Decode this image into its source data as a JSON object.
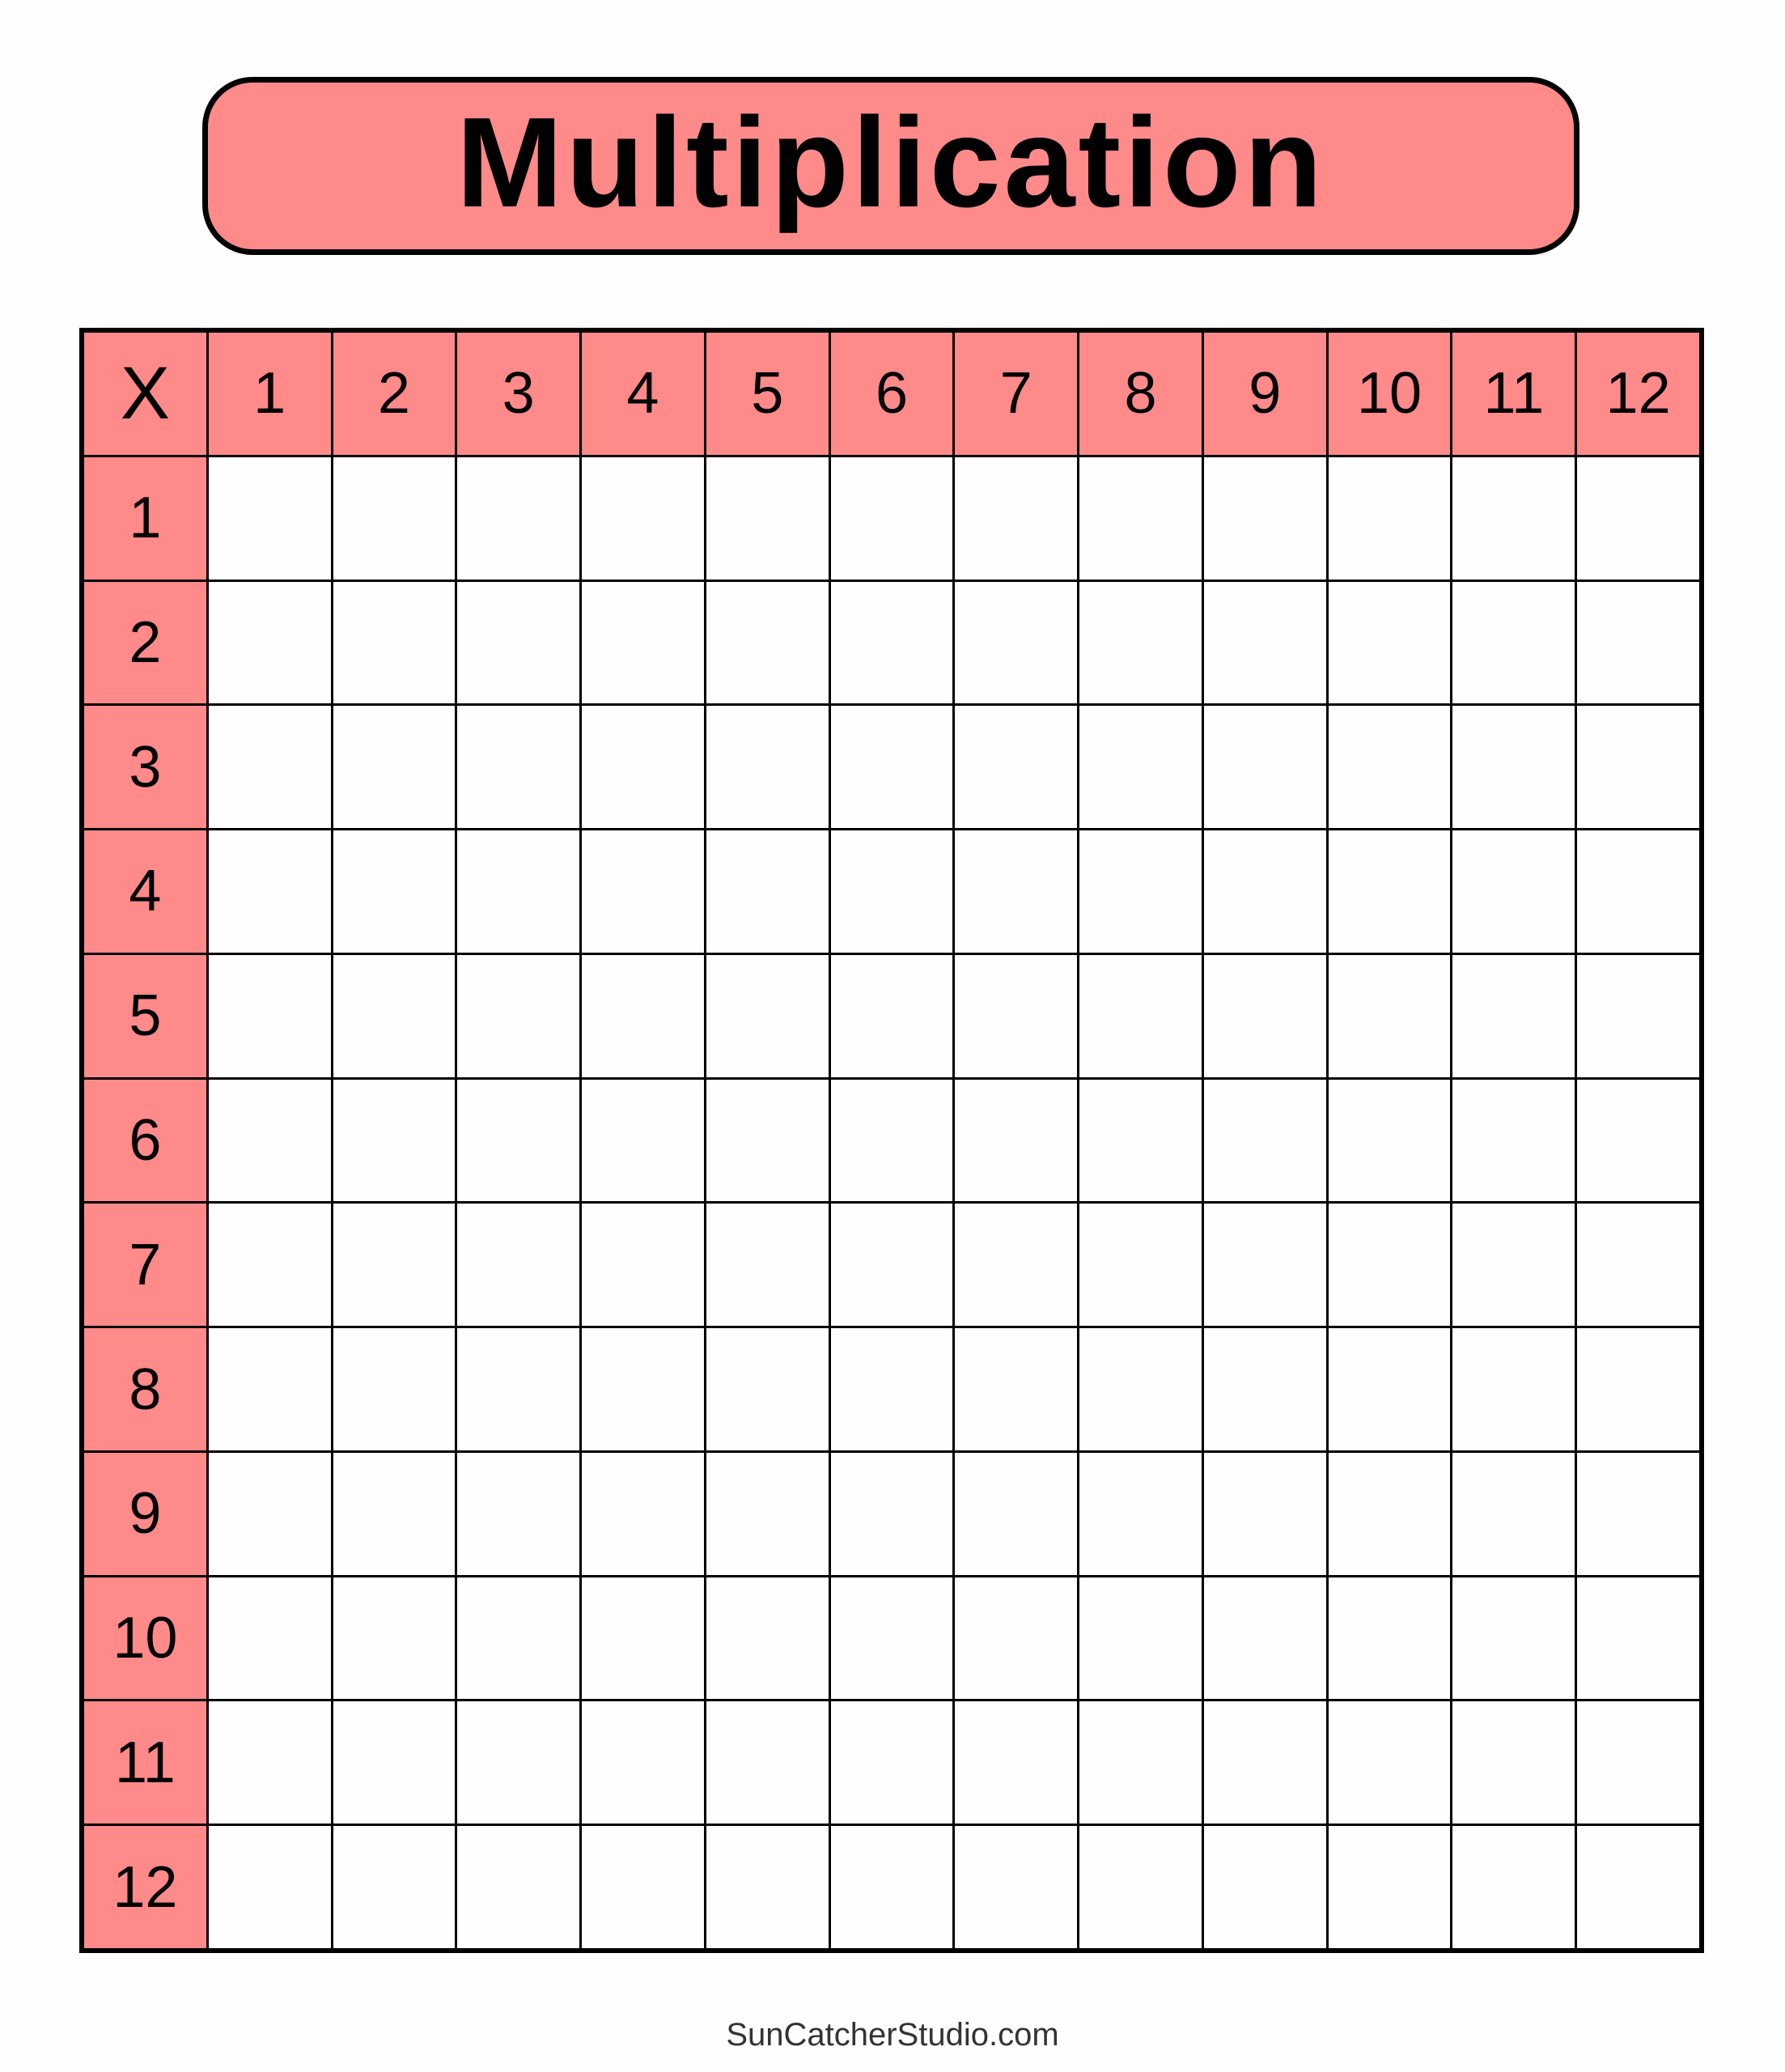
{
  "title": "Multiplication",
  "corner_label": "X",
  "column_headers": [
    "1",
    "2",
    "3",
    "4",
    "5",
    "6",
    "7",
    "8",
    "9",
    "10",
    "11",
    "12"
  ],
  "row_headers": [
    "1",
    "2",
    "3",
    "4",
    "5",
    "6",
    "7",
    "8",
    "9",
    "10",
    "11",
    "12"
  ],
  "footer": "SunCatcherStudio.com",
  "colors": {
    "header_fill": "#ff8a8a",
    "border": "#000000"
  }
}
